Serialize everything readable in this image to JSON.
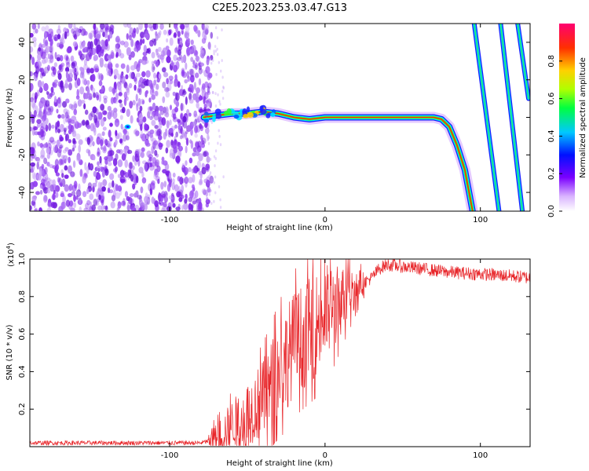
{
  "title": "C2E5.2023.253.03.47.G13",
  "chart_data": [
    {
      "type": "heatmap",
      "xlabel": "Height of straight line (km)",
      "ylabel": "Frequency (Hz)",
      "xlim": [
        -190,
        132
      ],
      "ylim": [
        -50,
        50
      ],
      "xticks": [
        -100,
        0,
        100
      ],
      "yticks": [
        -40,
        -20,
        0,
        20,
        40
      ],
      "colorbar": {
        "label": "Normalized spectral amplitude",
        "range": [
          0,
          1
        ],
        "ticks": [
          0.0,
          0.2,
          0.4,
          0.6,
          0.8
        ]
      },
      "noise_region_x": [
        -190,
        -73
      ],
      "features": [
        {
          "kind": "carrier",
          "points": [
            [
              -78,
              0
            ],
            [
              -70,
              1
            ],
            [
              -60,
              2
            ],
            [
              -50,
              2
            ],
            [
              -40,
              3
            ],
            [
              -30,
              2
            ],
            [
              -20,
              0
            ],
            [
              -10,
              -1
            ],
            [
              0,
              0
            ],
            [
              20,
              0
            ],
            [
              40,
              0
            ],
            [
              60,
              0
            ],
            [
              70,
              0
            ],
            [
              75,
              -1
            ],
            [
              80,
              -5
            ],
            [
              85,
              -15
            ],
            [
              90,
              -28
            ],
            [
              95,
              -50
            ]
          ]
        },
        {
          "kind": "streak",
          "points": [
            [
              96,
              50
            ],
            [
              112,
              -50
            ]
          ]
        },
        {
          "kind": "streak",
          "points": [
            [
              113,
              50
            ],
            [
              127,
              -50
            ]
          ]
        },
        {
          "kind": "streak",
          "points": [
            [
              124,
              50
            ],
            [
              131,
              10
            ]
          ]
        }
      ]
    },
    {
      "type": "line",
      "xlabel": "Height of straight line (km)",
      "ylabel": "SNR (10 * v/v)",
      "scale_label": "(x10",
      "scale_exp": "4",
      "scale_close": ")",
      "xlim": [
        -190,
        132
      ],
      "ylim": [
        0,
        1.0
      ],
      "xticks": [
        -100,
        0,
        100
      ],
      "yticks": [
        0.2,
        0.4,
        0.6,
        0.8,
        1.0
      ],
      "series": [
        {
          "color": "#e8262a",
          "envelope": [
            [
              -190,
              0.02
            ],
            [
              -130,
              0.02
            ],
            [
              -80,
              0.02
            ],
            [
              -70,
              0.04
            ],
            [
              -60,
              0.12
            ],
            [
              -50,
              0.18
            ],
            [
              -40,
              0.25
            ],
            [
              -30,
              0.4
            ],
            [
              -20,
              0.55
            ],
            [
              -10,
              0.62
            ],
            [
              0,
              0.7
            ],
            [
              10,
              0.78
            ],
            [
              20,
              0.85
            ],
            [
              30,
              0.9
            ],
            [
              35,
              0.95
            ],
            [
              40,
              0.97
            ],
            [
              60,
              0.95
            ],
            [
              80,
              0.93
            ],
            [
              100,
              0.92
            ],
            [
              120,
              0.91
            ],
            [
              132,
              0.9
            ]
          ]
        }
      ]
    }
  ]
}
